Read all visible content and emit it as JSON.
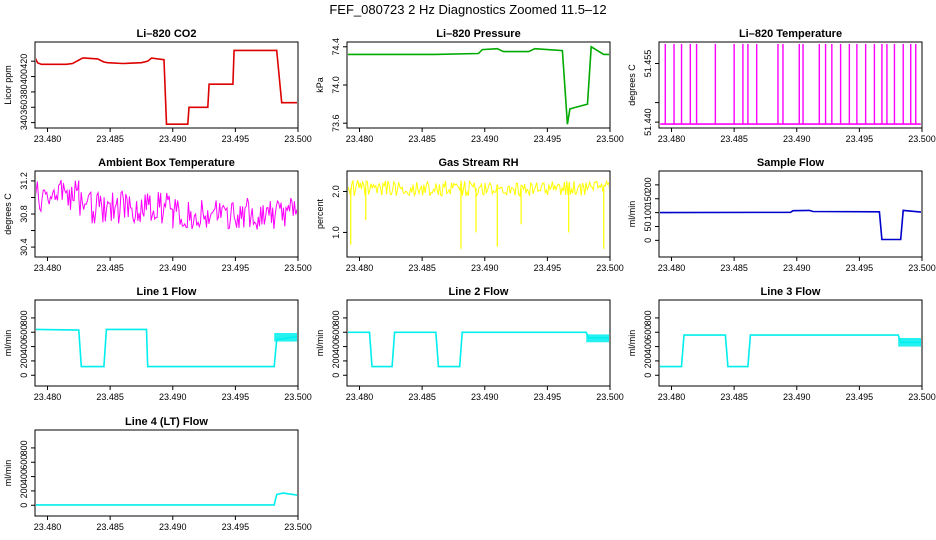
{
  "figure_title": "FEF_080723  2 Hz Diagnostics Zoomed 11.5–12",
  "colors": {
    "red": "#dd0000",
    "green": "#00aa00",
    "magenta": "#ff00ff",
    "yellow": "#ffff00",
    "blue": "#0000cc",
    "cyan": "#00eeee"
  },
  "chart_data": [
    {
      "type": "line",
      "title": "Li–820 CO2",
      "ylabel": "Licor ppm",
      "color": "red",
      "xlim": [
        23.479,
        23.5
      ],
      "xticks": [
        "23.480",
        "23.485",
        "23.490",
        "23.495",
        "23.500"
      ],
      "ylim": [
        333,
        445
      ],
      "yticks": [
        340,
        360,
        380,
        400,
        420
      ],
      "points": [
        [
          23.479,
          425
        ],
        [
          23.4792,
          418
        ],
        [
          23.4795,
          416
        ],
        [
          23.4815,
          416
        ],
        [
          23.482,
          417
        ],
        [
          23.4828,
          424
        ],
        [
          23.483,
          424
        ],
        [
          23.484,
          423
        ],
        [
          23.4845,
          419
        ],
        [
          23.4848,
          418
        ],
        [
          23.486,
          417
        ],
        [
          23.4875,
          418
        ],
        [
          23.488,
          420
        ],
        [
          23.4883,
          424
        ],
        [
          23.4893,
          422
        ],
        [
          23.4895,
          338
        ],
        [
          23.4912,
          338
        ],
        [
          23.4913,
          360
        ],
        [
          23.4928,
          360
        ],
        [
          23.4929,
          390
        ],
        [
          23.4948,
          390
        ],
        [
          23.4949,
          434
        ],
        [
          23.4983,
          434
        ],
        [
          23.4987,
          366
        ],
        [
          23.5,
          366
        ]
      ]
    },
    {
      "type": "line",
      "title": "Li–820 Pressure",
      "ylabel": "kPa",
      "color": "green",
      "xlim": [
        23.479,
        23.5
      ],
      "xticks": [
        "23.480",
        "23.485",
        "23.490",
        "23.495",
        "23.500"
      ],
      "ylim": [
        73.55,
        74.45
      ],
      "yticks": [
        "73.6",
        "74.0",
        "74.4"
      ],
      "points": [
        [
          23.479,
          74.32
        ],
        [
          23.486,
          74.32
        ],
        [
          23.4895,
          74.33
        ],
        [
          23.4898,
          74.37
        ],
        [
          23.491,
          74.38
        ],
        [
          23.4915,
          74.35
        ],
        [
          23.4935,
          74.35
        ],
        [
          23.494,
          74.38
        ],
        [
          23.4962,
          74.36
        ],
        [
          23.4966,
          73.59
        ],
        [
          23.4968,
          73.75
        ],
        [
          23.4982,
          73.8
        ],
        [
          23.4985,
          74.4
        ],
        [
          23.4995,
          74.32
        ],
        [
          23.5,
          74.32
        ]
      ]
    },
    {
      "type": "step",
      "title": "Li–820 Temperature",
      "ylabel": "degrees C",
      "color": "magenta",
      "xlim": [
        23.479,
        23.5
      ],
      "xticks": [
        "23.480",
        "23.485",
        "23.490",
        "23.495",
        "23.500"
      ],
      "ylim": [
        51.4385,
        51.4605
      ],
      "yticks": [
        "51.440",
        "51.455"
      ],
      "extra_ytick": 51.445,
      "low": 51.4395,
      "high": 51.46,
      "spikes": [
        23.4795,
        23.4802,
        23.4808,
        23.4815,
        23.482,
        23.4835,
        23.485,
        23.4857,
        23.4861,
        23.4868,
        23.4885,
        23.4889,
        23.4902,
        23.4905,
        23.4918,
        23.4923,
        23.4928,
        23.4935,
        23.4942,
        23.4948,
        23.4955,
        23.4962,
        23.4968,
        23.4972,
        23.4978,
        23.4985,
        23.4991,
        23.4995
      ]
    },
    {
      "type": "noise",
      "title": "Ambient Box Temperature",
      "ylabel": "degrees C",
      "color": "magenta",
      "xlim": [
        23.479,
        23.5
      ],
      "xticks": [
        "23.480",
        "23.485",
        "23.490",
        "23.495",
        "23.500"
      ],
      "ylim": [
        30.28,
        31.32
      ],
      "yticks": [
        "30.4",
        "30.8",
        "31.2"
      ],
      "extra_ytick": 30.6,
      "extra_ytick2": 31.0,
      "segments": [
        [
          23.479,
          23.4825,
          31.02,
          0.3
        ],
        [
          23.4825,
          23.49,
          30.88,
          0.3
        ],
        [
          23.49,
          23.5,
          30.8,
          0.3
        ]
      ]
    },
    {
      "type": "noise",
      "title": "Gas Stream RH",
      "ylabel": "percent",
      "color": "yellow",
      "xlim": [
        23.479,
        23.5
      ],
      "xticks": [
        "23.480",
        "23.485",
        "23.490",
        "23.495",
        "23.500"
      ],
      "ylim": [
        0.4,
        2.5
      ],
      "yticks": [
        "1.0",
        "2.0"
      ],
      "segments": [
        [
          23.479,
          23.5,
          2.08,
          0.3
        ]
      ],
      "drops": [
        [
          23.4793,
          0.7
        ],
        [
          23.4805,
          1.3
        ],
        [
          23.4881,
          0.6
        ],
        [
          23.4893,
          1.0
        ],
        [
          23.491,
          0.65
        ],
        [
          23.4929,
          1.2
        ],
        [
          23.4967,
          1.0
        ],
        [
          23.4995,
          0.6
        ]
      ]
    },
    {
      "type": "line",
      "title": "Sample Flow",
      "ylabel": "ml/min",
      "color": "blue",
      "xlim": [
        23.479,
        23.5
      ],
      "xticks": [
        "23.480",
        "23.485",
        "23.490",
        "23.495",
        "23.500"
      ],
      "ylim": [
        -60,
        250
      ],
      "yticks": [
        0,
        50,
        100,
        150,
        200
      ],
      "points": [
        [
          23.479,
          100
        ],
        [
          23.4895,
          101
        ],
        [
          23.4897,
          107
        ],
        [
          23.491,
          108
        ],
        [
          23.4913,
          104
        ],
        [
          23.4966,
          103
        ],
        [
          23.4968,
          3
        ],
        [
          23.4983,
          3
        ],
        [
          23.4985,
          108
        ],
        [
          23.5,
          102
        ]
      ]
    },
    {
      "type": "line",
      "title": "Line 1 Flow",
      "ylabel": "ml/min",
      "color": "cyan",
      "xlim": [
        23.479,
        23.5
      ],
      "xticks": [
        "23.480",
        "23.485",
        "23.490",
        "23.495",
        "23.500"
      ],
      "ylim": [
        -150,
        1050
      ],
      "yticks": [
        0,
        200,
        400,
        600,
        800
      ],
      "points": [
        [
          23.479,
          640
        ],
        [
          23.4825,
          630
        ],
        [
          23.4827,
          120
        ],
        [
          23.4845,
          120
        ],
        [
          23.4847,
          640
        ],
        [
          23.4879,
          640
        ],
        [
          23.488,
          120
        ],
        [
          23.4981,
          120
        ],
        [
          23.4983,
          500
        ],
        [
          23.5,
          540
        ]
      ],
      "band": [
        23.4981,
        23.5,
        470,
        590
      ]
    },
    {
      "type": "line",
      "title": "Line 2 Flow",
      "ylabel": "ml/min",
      "color": "cyan",
      "xlim": [
        23.479,
        23.5
      ],
      "xticks": [
        "23.480",
        "23.485",
        "23.490",
        "23.495",
        "23.500"
      ],
      "ylim": [
        -150,
        1050
      ],
      "yticks": [
        0,
        200,
        400,
        600,
        800
      ],
      "points": [
        [
          23.479,
          600
        ],
        [
          23.4808,
          600
        ],
        [
          23.481,
          120
        ],
        [
          23.4826,
          120
        ],
        [
          23.4828,
          600
        ],
        [
          23.4861,
          600
        ],
        [
          23.4863,
          120
        ],
        [
          23.488,
          120
        ],
        [
          23.4882,
          600
        ],
        [
          23.4981,
          600
        ],
        [
          23.4983,
          520
        ],
        [
          23.5,
          520
        ]
      ],
      "band": [
        23.4981,
        23.5,
        460,
        570
      ]
    },
    {
      "type": "line",
      "title": "Line 3 Flow",
      "ylabel": "ml/min",
      "color": "cyan",
      "xlim": [
        23.479,
        23.5
      ],
      "xticks": [
        "23.480",
        "23.485",
        "23.490",
        "23.495",
        "23.500"
      ],
      "ylim": [
        -150,
        1050
      ],
      "yticks": [
        0,
        200,
        400,
        600,
        800
      ],
      "points": [
        [
          23.479,
          120
        ],
        [
          23.4808,
          120
        ],
        [
          23.481,
          560
        ],
        [
          23.4843,
          560
        ],
        [
          23.4845,
          120
        ],
        [
          23.4861,
          120
        ],
        [
          23.4863,
          560
        ],
        [
          23.4981,
          560
        ],
        [
          23.4983,
          460
        ],
        [
          23.5,
          460
        ]
      ],
      "band": [
        23.4981,
        23.5,
        400,
        520
      ]
    },
    {
      "type": "line",
      "title": "Line 4 (LT) Flow",
      "ylabel": "ml/min",
      "color": "cyan",
      "xlim": [
        23.479,
        23.5
      ],
      "xticks": [
        "23.480",
        "23.485",
        "23.490",
        "23.495",
        "23.500"
      ],
      "ylim": [
        -150,
        1050
      ],
      "yticks": [
        0,
        200,
        400,
        600,
        800
      ],
      "points": [
        [
          23.479,
          5
        ],
        [
          23.4981,
          5
        ],
        [
          23.4983,
          150
        ],
        [
          23.4988,
          170
        ],
        [
          23.5,
          140
        ]
      ]
    }
  ]
}
